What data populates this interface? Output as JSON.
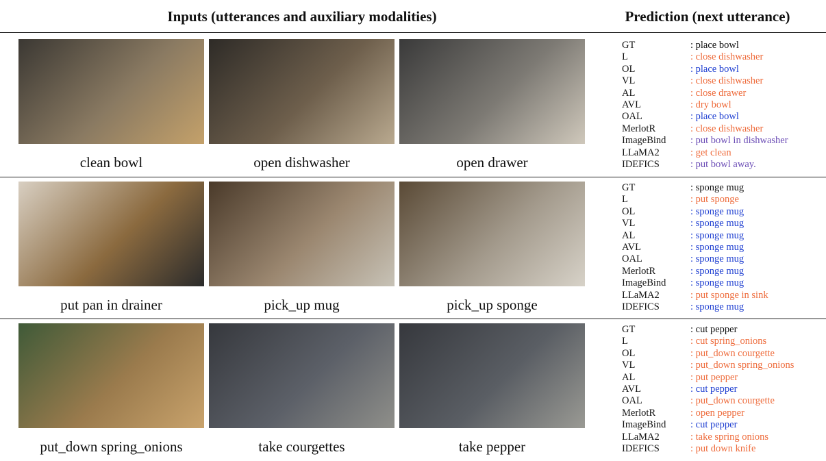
{
  "header": {
    "inputs_title": "Inputs (utterances and auxiliary modalities)",
    "prediction_title": "Prediction (next utterance)"
  },
  "rows": [
    {
      "inputs": [
        {
          "caption": "clean bowl"
        },
        {
          "caption": "open dishwasher"
        },
        {
          "caption": "open drawer"
        }
      ],
      "predictions": [
        {
          "model": "GT",
          "value": ": place bowl",
          "color": "#111111"
        },
        {
          "model": "L",
          "value": ": close dishwasher",
          "color": "#ee6b3b"
        },
        {
          "model": "OL",
          "value": ": place bowl",
          "color": "#1f3fd1"
        },
        {
          "model": "VL",
          "value": ": close dishwasher",
          "color": "#ee6b3b"
        },
        {
          "model": "AL",
          "value": ": close drawer",
          "color": "#ee6b3b"
        },
        {
          "model": "AVL",
          "value": ": dry bowl",
          "color": "#ee6b3b"
        },
        {
          "model": "OAL",
          "value": ": place bowl",
          "color": "#1f3fd1"
        },
        {
          "model": "MerlotR",
          "value": ": close dishwasher",
          "color": "#ee6b3b"
        },
        {
          "model": "ImageBind",
          "value": ": put bowl in dishwasher",
          "color": "#6a4bb5"
        },
        {
          "model": "LLaMA2",
          "value": ": get clean",
          "color": "#ee6b3b"
        },
        {
          "model": "IDEFICS",
          "value": ": put bowl away.",
          "color": "#6a4bb5"
        }
      ]
    },
    {
      "inputs": [
        {
          "caption": "put pan in drainer"
        },
        {
          "caption": "pick_up mug"
        },
        {
          "caption": "pick_up sponge"
        }
      ],
      "predictions": [
        {
          "model": "GT",
          "value": ": sponge mug",
          "color": "#111111"
        },
        {
          "model": "L",
          "value": ": put sponge",
          "color": "#ee6b3b"
        },
        {
          "model": "OL",
          "value": ": sponge mug",
          "color": "#1f3fd1"
        },
        {
          "model": "VL",
          "value": ": sponge mug",
          "color": "#1f3fd1"
        },
        {
          "model": "AL",
          "value": ": sponge mug",
          "color": "#1f3fd1"
        },
        {
          "model": "AVL",
          "value": ": sponge mug",
          "color": "#1f3fd1"
        },
        {
          "model": "OAL",
          "value": ": sponge mug",
          "color": "#1f3fd1"
        },
        {
          "model": "MerlotR",
          "value": ": sponge mug",
          "color": "#1f3fd1"
        },
        {
          "model": "ImageBind",
          "value": ": sponge mug",
          "color": "#1f3fd1"
        },
        {
          "model": "LLaMA2",
          "value": ": put sponge in sink",
          "color": "#ee6b3b"
        },
        {
          "model": "IDEFICS",
          "value": ": sponge mug",
          "color": "#1f3fd1"
        }
      ]
    },
    {
      "inputs": [
        {
          "caption": "put_down spring_onions"
        },
        {
          "caption": "take courgettes"
        },
        {
          "caption": "take pepper"
        }
      ],
      "predictions": [
        {
          "model": "GT",
          "value": ": cut pepper",
          "color": "#111111"
        },
        {
          "model": "L",
          "value": ": cut spring_onions",
          "color": "#ee6b3b"
        },
        {
          "model": "OL",
          "value": ": put_down courgette",
          "color": "#ee6b3b"
        },
        {
          "model": "VL",
          "value": ": put_down spring_onions",
          "color": "#ee6b3b"
        },
        {
          "model": "AL",
          "value": ": put pepper",
          "color": "#ee6b3b"
        },
        {
          "model": "AVL",
          "value": ": cut pepper",
          "color": "#1f3fd1"
        },
        {
          "model": "OAL",
          "value": ": put_down courgette",
          "color": "#ee6b3b"
        },
        {
          "model": "MerlotR",
          "value": ": open pepper",
          "color": "#ee6b3b"
        },
        {
          "model": "ImageBind",
          "value": ": cut pepper",
          "color": "#1f3fd1"
        },
        {
          "model": "LLaMA2",
          "value": ": take spring onions",
          "color": "#ee6b3b"
        },
        {
          "model": "IDEFICS",
          "value": ": put down knife",
          "color": "#ee6b3b"
        }
      ]
    }
  ]
}
